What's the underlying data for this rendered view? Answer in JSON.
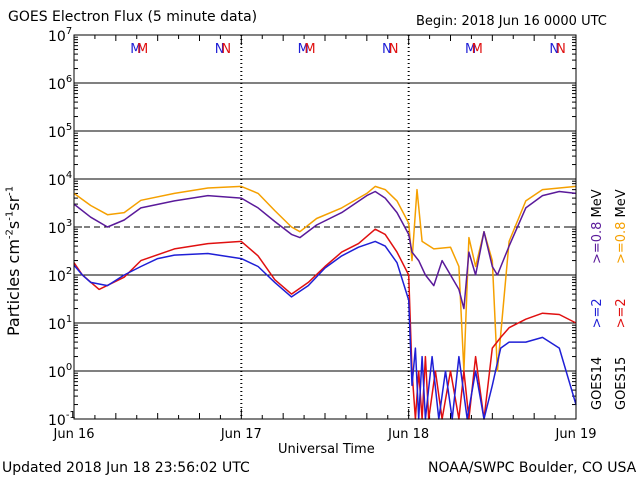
{
  "header": {
    "title": "GOES Electron Flux (5 minute data)",
    "begin": "Begin: 2018 Jun 16 0000 UTC"
  },
  "footer": {
    "updated": "Updated 2018 Jun 18 23:56:02 UTC",
    "source": "NOAA/SWPC Boulder, CO USA"
  },
  "colors": {
    "goes14_low": "#1f1fd6",
    "goes14_high": "#5a1a9a",
    "goes15_low": "#e01010",
    "goes15_high": "#f5a000",
    "m_marker": "#1f1fd6",
    "n_marker": "#e01010"
  },
  "chart_data": {
    "type": "line",
    "title": "GOES Electron Flux (5 minute data)",
    "xlabel": "Universal Time",
    "ylabel_parts": [
      "Particles cm",
      "-2",
      "s",
      "-1",
      "sr",
      "-1"
    ],
    "x_ticks": [
      "Jun 16",
      "Jun 17",
      "Jun 18",
      "Jun 19"
    ],
    "xlim_days": [
      0,
      3
    ],
    "y_scale": "log",
    "ylim": [
      0.1,
      10000000
    ],
    "y_ticks": [
      {
        "base": "10",
        "exp": "7"
      },
      {
        "base": "10",
        "exp": "6"
      },
      {
        "base": "10",
        "exp": "5"
      },
      {
        "base": "10",
        "exp": "4"
      },
      {
        "base": "10",
        "exp": "3"
      },
      {
        "base": "10",
        "exp": "2"
      },
      {
        "base": "10",
        "exp": "1"
      },
      {
        "base": "10",
        "exp": "0"
      },
      {
        "base": "10",
        "exp": "-1"
      }
    ],
    "threshold": 1000,
    "markers": [
      {
        "label": "M",
        "day": 0.37,
        "color": "#1f1fd6"
      },
      {
        "label": "M",
        "day": 0.41,
        "color": "#e01010"
      },
      {
        "label": "N",
        "day": 0.87,
        "color": "#1f1fd6"
      },
      {
        "label": "N",
        "day": 0.91,
        "color": "#e01010"
      },
      {
        "label": "M",
        "day": 1.37,
        "color": "#1f1fd6"
      },
      {
        "label": "M",
        "day": 1.41,
        "color": "#e01010"
      },
      {
        "label": "N",
        "day": 1.87,
        "color": "#1f1fd6"
      },
      {
        "label": "N",
        "day": 1.91,
        "color": "#e01010"
      },
      {
        "label": "M",
        "day": 2.37,
        "color": "#1f1fd6"
      },
      {
        "label": "M",
        "day": 2.41,
        "color": "#e01010"
      },
      {
        "label": "N",
        "day": 2.87,
        "color": "#1f1fd6"
      },
      {
        "label": "N",
        "day": 2.91,
        "color": "#e01010"
      }
    ],
    "legend": {
      "goes14_label": "GOES14",
      "goes15_label": "GOES15",
      "ge2_label": ">=2",
      "ge08_label": ">=0.8",
      "mev_label": "MeV"
    },
    "series": [
      {
        "name": "GOES15 >=0.8 MeV",
        "color": "#f5a000",
        "points": [
          [
            0,
            5000
          ],
          [
            0.1,
            2800
          ],
          [
            0.2,
            1800
          ],
          [
            0.3,
            2000
          ],
          [
            0.4,
            3600
          ],
          [
            0.6,
            5000
          ],
          [
            0.8,
            6500
          ],
          [
            1.0,
            7000
          ],
          [
            1.1,
            5000
          ],
          [
            1.2,
            2200
          ],
          [
            1.3,
            1000
          ],
          [
            1.35,
            800
          ],
          [
            1.45,
            1500
          ],
          [
            1.6,
            2500
          ],
          [
            1.75,
            5000
          ],
          [
            1.8,
            7000
          ],
          [
            1.86,
            6000
          ],
          [
            1.93,
            3500
          ],
          [
            2.0,
            1200
          ],
          [
            2.02,
            200
          ],
          [
            2.05,
            6000
          ],
          [
            2.08,
            500
          ],
          [
            2.15,
            350
          ],
          [
            2.25,
            380
          ],
          [
            2.3,
            150
          ],
          [
            2.33,
            1
          ],
          [
            2.36,
            600
          ],
          [
            2.4,
            150
          ],
          [
            2.45,
            800
          ],
          [
            2.5,
            200
          ],
          [
            2.53,
            1
          ],
          [
            2.6,
            500
          ],
          [
            2.7,
            3500
          ],
          [
            2.8,
            6000
          ],
          [
            2.9,
            6500
          ],
          [
            3.0,
            7000
          ]
        ]
      },
      {
        "name": "GOES14 >=0.8 MeV",
        "color": "#5a1a9a",
        "points": [
          [
            0,
            3000
          ],
          [
            0.1,
            1600
          ],
          [
            0.2,
            1000
          ],
          [
            0.3,
            1400
          ],
          [
            0.4,
            2500
          ],
          [
            0.6,
            3500
          ],
          [
            0.8,
            4500
          ],
          [
            1.0,
            4000
          ],
          [
            1.1,
            2500
          ],
          [
            1.2,
            1300
          ],
          [
            1.3,
            700
          ],
          [
            1.35,
            600
          ],
          [
            1.45,
            1100
          ],
          [
            1.6,
            2000
          ],
          [
            1.75,
            4500
          ],
          [
            1.8,
            5500
          ],
          [
            1.86,
            4000
          ],
          [
            1.93,
            2000
          ],
          [
            2.0,
            700
          ],
          [
            2.02,
            300
          ],
          [
            2.06,
            200
          ],
          [
            2.1,
            100
          ],
          [
            2.15,
            60
          ],
          [
            2.2,
            200
          ],
          [
            2.25,
            100
          ],
          [
            2.3,
            50
          ],
          [
            2.33,
            20
          ],
          [
            2.36,
            300
          ],
          [
            2.4,
            100
          ],
          [
            2.45,
            800
          ],
          [
            2.5,
            150
          ],
          [
            2.53,
            100
          ],
          [
            2.6,
            400
          ],
          [
            2.7,
            2500
          ],
          [
            2.8,
            4500
          ],
          [
            2.9,
            5500
          ],
          [
            3.0,
            5000
          ]
        ]
      },
      {
        "name": "GOES15 >=2 MeV",
        "color": "#e01010",
        "points": [
          [
            0,
            180
          ],
          [
            0.05,
            100
          ],
          [
            0.15,
            50
          ],
          [
            0.3,
            90
          ],
          [
            0.4,
            200
          ],
          [
            0.6,
            350
          ],
          [
            0.8,
            450
          ],
          [
            1.0,
            500
          ],
          [
            1.1,
            250
          ],
          [
            1.2,
            80
          ],
          [
            1.3,
            40
          ],
          [
            1.4,
            70
          ],
          [
            1.5,
            150
          ],
          [
            1.6,
            300
          ],
          [
            1.7,
            450
          ],
          [
            1.8,
            900
          ],
          [
            1.86,
            700
          ],
          [
            1.93,
            300
          ],
          [
            2.0,
            100
          ],
          [
            2.02,
            1
          ],
          [
            2.04,
            0.1
          ],
          [
            2.06,
            1
          ],
          [
            2.08,
            0.1
          ],
          [
            2.1,
            2
          ],
          [
            2.12,
            0.1
          ],
          [
            2.16,
            1
          ],
          [
            2.2,
            0.1
          ],
          [
            2.25,
            1
          ],
          [
            2.3,
            0.1
          ],
          [
            2.33,
            1
          ],
          [
            2.36,
            0.1
          ],
          [
            2.4,
            2
          ],
          [
            2.45,
            0.1
          ],
          [
            2.5,
            3
          ],
          [
            2.55,
            5
          ],
          [
            2.6,
            8
          ],
          [
            2.7,
            12
          ],
          [
            2.8,
            16
          ],
          [
            2.9,
            15
          ],
          [
            3.0,
            10
          ]
        ]
      },
      {
        "name": "GOES14 >=2 MeV",
        "color": "#1f1fd6",
        "points": [
          [
            0,
            160
          ],
          [
            0.05,
            100
          ],
          [
            0.1,
            70
          ],
          [
            0.2,
            60
          ],
          [
            0.3,
            100
          ],
          [
            0.4,
            150
          ],
          [
            0.5,
            220
          ],
          [
            0.6,
            260
          ],
          [
            0.8,
            280
          ],
          [
            1.0,
            220
          ],
          [
            1.1,
            150
          ],
          [
            1.2,
            70
          ],
          [
            1.3,
            35
          ],
          [
            1.4,
            60
          ],
          [
            1.5,
            140
          ],
          [
            1.6,
            250
          ],
          [
            1.7,
            380
          ],
          [
            1.8,
            500
          ],
          [
            1.86,
            400
          ],
          [
            1.93,
            180
          ],
          [
            2.0,
            30
          ],
          [
            2.02,
            0.5
          ],
          [
            2.04,
            3
          ],
          [
            2.06,
            0.1
          ],
          [
            2.08,
            2
          ],
          [
            2.1,
            0.1
          ],
          [
            2.14,
            2
          ],
          [
            2.18,
            0.1
          ],
          [
            2.22,
            1
          ],
          [
            2.26,
            0.1
          ],
          [
            2.3,
            2
          ],
          [
            2.35,
            0.1
          ],
          [
            2.4,
            1
          ],
          [
            2.45,
            0.1
          ],
          [
            2.5,
            0.5
          ],
          [
            2.55,
            3
          ],
          [
            2.6,
            4
          ],
          [
            2.7,
            4
          ],
          [
            2.8,
            5
          ],
          [
            2.9,
            3
          ],
          [
            3.0,
            0.2
          ]
        ]
      }
    ]
  }
}
